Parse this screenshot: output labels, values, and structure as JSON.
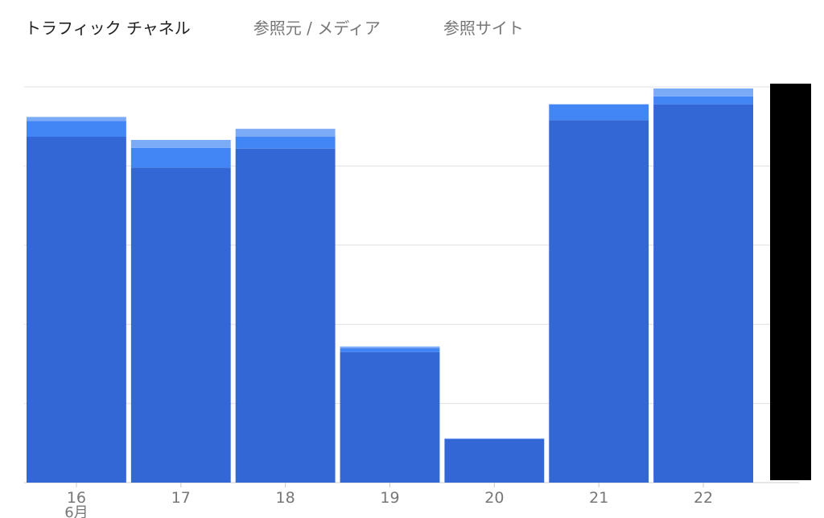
{
  "tabs": [
    {
      "label": "トラフィック チャネル",
      "active": true
    },
    {
      "label": "参照元 / メディア",
      "active": false
    },
    {
      "label": "参照サイト",
      "active": false
    }
  ],
  "chart_data": {
    "type": "bar",
    "stacked": true,
    "categories": [
      "16",
      "17",
      "18",
      "19",
      "20",
      "21",
      "22"
    ],
    "category_sublabels": [
      "6月",
      "",
      "",
      "",
      "",
      "",
      ""
    ],
    "series": [
      {
        "color": "#3367d6",
        "values": [
          437,
          398,
          422,
          165,
          55,
          458,
          478
        ]
      },
      {
        "color": "#4285f4",
        "values": [
          20,
          25,
          15,
          5,
          0,
          20,
          10
        ]
      },
      {
        "color": "#7baaf7",
        "values": [
          5,
          10,
          10,
          2,
          1,
          0,
          10
        ]
      }
    ],
    "ylim": [
      0,
      500
    ],
    "grid": true,
    "y_tick_labels_visible": false,
    "legend": "none"
  },
  "redaction": {
    "color": "#000000"
  }
}
